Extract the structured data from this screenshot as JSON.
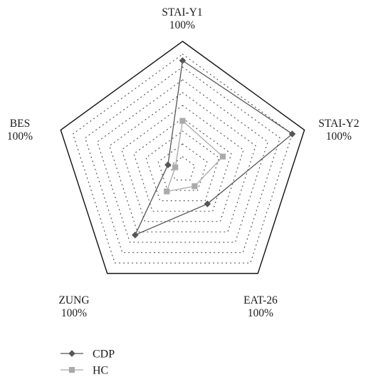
{
  "chart_data": {
    "type": "radar",
    "title": "",
    "axes": [
      {
        "name": "STAI-Y1",
        "max_label": "100%"
      },
      {
        "name": "STAI-Y2",
        "max_label": "100%"
      },
      {
        "name": "EAT-26",
        "max_label": "100%"
      },
      {
        "name": "ZUNG",
        "max_label": "100%"
      },
      {
        "name": "BES",
        "max_label": "100%"
      }
    ],
    "range": [
      0,
      100
    ],
    "unit": "%",
    "grid_rings": 10,
    "grid": true,
    "legend_position": "bottom-left",
    "series": [
      {
        "name": "CDP",
        "marker": "diamond",
        "color": "#555555",
        "values": [
          85,
          90,
          33,
          63,
          12
        ]
      },
      {
        "name": "HC",
        "marker": "square",
        "color": "#aaaaaa",
        "values": [
          38,
          33,
          16,
          21,
          6
        ]
      }
    ]
  }
}
